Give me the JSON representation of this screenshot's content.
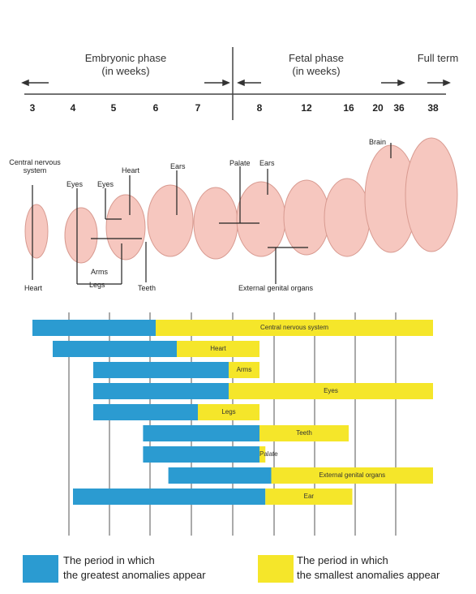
{
  "header": {
    "embryonic_line1": "Embryonic phase",
    "embryonic_line2": "(in weeks)",
    "fetal_line1": "Fetal phase",
    "fetal_line2": "(in weeks)",
    "full_term": "Full term"
  },
  "weeks": [
    "3",
    "4",
    "5",
    "6",
    "7",
    "8",
    "12",
    "16",
    "20",
    "36",
    "38"
  ],
  "illustration_labels": {
    "central_nervous_system": "Central nervous system",
    "eyes_1": "Eyes",
    "eyes_2": "Eyes",
    "heart_top": "Heart",
    "ears_1": "Ears",
    "palate": "Palate",
    "ears_2": "Ears",
    "brain": "Brain",
    "arms": "Arms",
    "legs": "Legs",
    "heart_bottom": "Heart",
    "teeth": "Teeth",
    "external_genital_organs": "External genital organs"
  },
  "colors": {
    "blue": "#2b9bd1",
    "yellow": "#f5e62a"
  },
  "chart_data": {
    "type": "bar",
    "categories": [
      "Central nervous system",
      "Heart",
      "Arms",
      "Eyes",
      "Legs",
      "Teeth",
      "Palate",
      "External genital organs",
      "Ear"
    ],
    "series": [
      {
        "name": "The period in which the greatest anomalies appear",
        "ranges": [
          [
            3,
            6
          ],
          [
            3.5,
            6.5
          ],
          [
            4.5,
            7.5
          ],
          [
            4.5,
            7.5
          ],
          [
            4.5,
            7
          ],
          [
            5.7,
            8
          ],
          [
            5.7,
            8.3
          ],
          [
            6.3,
            9
          ],
          [
            4,
            8.5
          ]
        ]
      },
      {
        "name": "The period in which the smallest anomalies appear",
        "ranges": [
          [
            6,
            38
          ],
          [
            6.5,
            8
          ],
          [
            7.5,
            8
          ],
          [
            7.5,
            38
          ],
          [
            7,
            8
          ],
          [
            8,
            16
          ],
          [
            8,
            8.5
          ],
          [
            9,
            38
          ],
          [
            8.5,
            16.5
          ]
        ]
      }
    ]
  },
  "legend": {
    "blue_line1": "The period in which",
    "blue_line2": "the greatest anomalies appear",
    "yellow_line1": "The period in which",
    "yellow_line2": "the smallest anomalies appear"
  }
}
